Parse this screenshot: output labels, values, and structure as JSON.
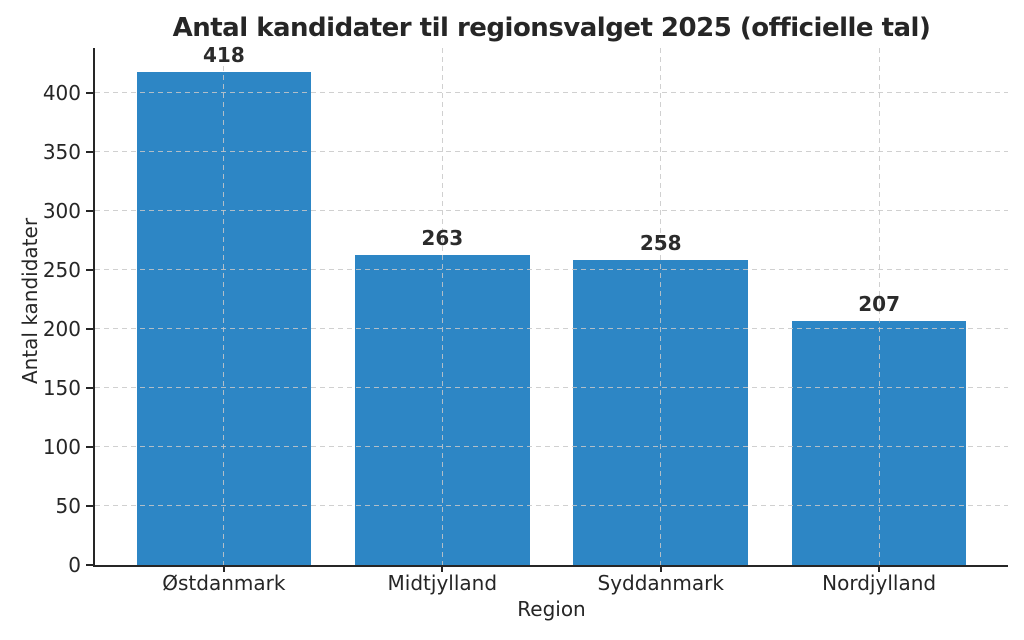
{
  "chart_data": {
    "type": "bar",
    "title": "Antal kandidater til regionsvalget 2025 (officielle tal)",
    "xlabel": "Region",
    "ylabel": "Antal kandidater",
    "categories": [
      "Østdanmark",
      "Midtjylland",
      "Syddanmark",
      "Nordjylland"
    ],
    "values": [
      418,
      263,
      258,
      207
    ],
    "bar_value_labels": [
      "418",
      "263",
      "258",
      "207"
    ],
    "yticks": [
      0,
      50,
      100,
      150,
      200,
      250,
      300,
      350,
      400
    ],
    "ylim": [
      0,
      438
    ],
    "grid": {
      "visible": true,
      "style": "dashed",
      "axes": "both",
      "above_bars": true
    },
    "legend": null,
    "colors": {
      "bar": "#2d86c5",
      "grid": "#c8c8c8",
      "axis": "#262626",
      "text": "#262626",
      "background": "#ffffff"
    }
  }
}
